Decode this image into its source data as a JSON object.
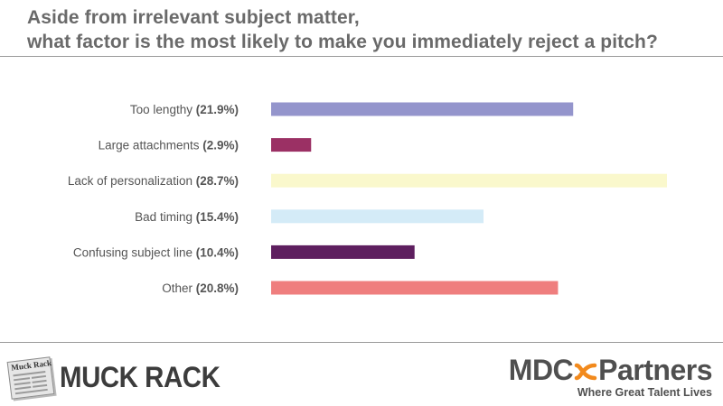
{
  "title": {
    "line1": "Aside from irrelevant subject matter,",
    "line2": "what factor is the most likely to make you immediately reject a pitch?"
  },
  "chart_data": {
    "type": "bar",
    "orientation": "horizontal",
    "title": "Aside from irrelevant subject matter, what factor is the most likely to make you immediately reject a pitch?",
    "categories": [
      "Too lengthy",
      "Large attachments",
      "Lack of personalization",
      "Bad timing",
      "Confusing subject line",
      "Other"
    ],
    "value_labels": [
      "(21.9%)",
      "(2.9%)",
      "(28.7%)",
      "(15.4%)",
      "(10.4%)",
      "(20.8%)"
    ],
    "values": [
      21.9,
      2.9,
      28.7,
      15.4,
      10.4,
      20.8
    ],
    "colors": [
      "#9495cc",
      "#9b3064",
      "#faf8cc",
      "#d4ebf7",
      "#5e1f5f",
      "#ef7e7e"
    ],
    "xlim": [
      0,
      28.7
    ],
    "unit": "%",
    "grid": false,
    "legend": "none"
  },
  "footer": {
    "muckrack_logo": {
      "text": "MUCK RACK",
      "paper_title": "Muck Rack",
      "icon": "newspaper-icon"
    },
    "mdc_logo": {
      "left": "MDC",
      "right": "Partners",
      "tagline": "Where Great Talent Lives",
      "mark_color": "#f28a1d",
      "icon": "infinity-mark-icon"
    }
  }
}
